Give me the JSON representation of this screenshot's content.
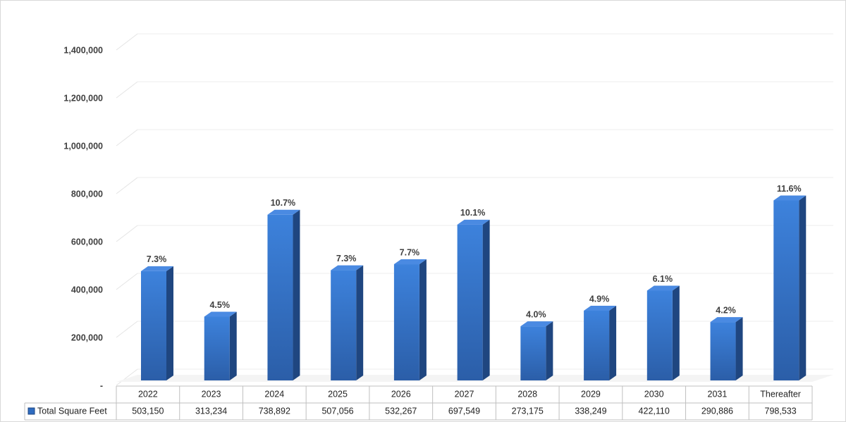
{
  "chart_data": {
    "type": "bar3d",
    "categories": [
      "2022",
      "2023",
      "2024",
      "2025",
      "2026",
      "2027",
      "2028",
      "2029",
      "2030",
      "2031",
      "Thereafter"
    ],
    "series": [
      {
        "name": "Total Square Feet",
        "color": "#2f6cc0",
        "values": [
          503150,
          313234,
          738892,
          507056,
          532267,
          697549,
          273175,
          338249,
          422110,
          290886,
          798533
        ],
        "value_labels": [
          "503,150",
          "313,234",
          "738,892",
          "507,056",
          "532,267",
          "697,549",
          "273,175",
          "338,249",
          "422,110",
          "290,886",
          "798,533"
        ],
        "annotations": [
          "7.3%",
          "4.5%",
          "10.7%",
          "7.3%",
          "7.7%",
          "10.1%",
          "4.0%",
          "4.9%",
          "6.1%",
          "4.2%",
          "11.6%"
        ]
      }
    ],
    "ylim": [
      0,
      1400000
    ],
    "yticks": [
      {
        "value": 0,
        "label": "-"
      },
      {
        "value": 200000,
        "label": "200,000"
      },
      {
        "value": 400000,
        "label": "400,000"
      },
      {
        "value": 600000,
        "label": "600,000"
      },
      {
        "value": 800000,
        "label": "800,000"
      },
      {
        "value": 1000000,
        "label": "1,000,000"
      },
      {
        "value": 1200000,
        "label": "1,200,000"
      },
      {
        "value": 1400000,
        "label": "1,400,000"
      }
    ],
    "grid": true
  }
}
